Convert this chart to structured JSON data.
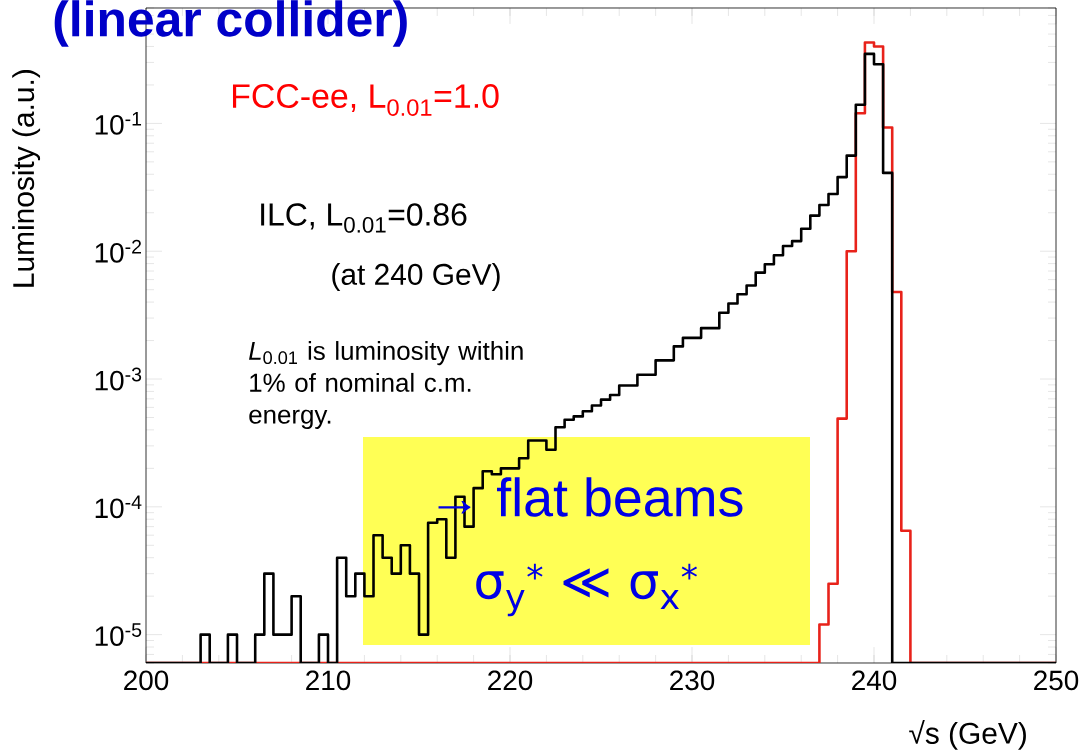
{
  "chart_data": {
    "type": "histogram",
    "title": "(linear collider)",
    "xlabel": "√s (GeV)",
    "ylabel": "Luminosity (a.u.)",
    "bins": [
      200,
      200.5,
      201,
      201.5,
      202,
      202.5,
      203,
      203.5,
      204,
      204.5,
      205,
      205.5,
      206,
      206.5,
      207,
      207.5,
      208,
      208.5,
      209,
      209.5,
      210,
      210.5,
      211,
      211.5,
      212,
      212.5,
      213,
      213.5,
      214,
      214.5,
      215,
      215.5,
      216,
      216.5,
      217,
      217.5,
      218,
      218.5,
      219,
      219.5,
      220,
      220.5,
      221,
      221.5,
      222,
      222.5,
      223,
      223.5,
      224,
      224.5,
      225,
      225.5,
      226,
      226.5,
      227,
      227.5,
      228,
      228.5,
      229,
      229.5,
      230,
      230.5,
      231,
      231.5,
      232,
      232.5,
      233,
      233.5,
      234,
      234.5,
      235,
      235.5,
      236,
      236.5,
      237,
      237.5,
      238,
      238.5,
      239,
      239.5,
      240,
      240.5,
      241,
      241.5,
      242,
      242.5,
      243,
      243.5,
      244,
      244.5,
      245,
      245.5,
      246,
      246.5,
      247,
      247.5,
      248,
      248.5,
      249,
      249.5,
      250
    ],
    "series": [
      {
        "color": "#e8221a",
        "values": [
          null,
          null,
          null,
          null,
          null,
          null,
          null,
          null,
          null,
          null,
          null,
          null,
          null,
          null,
          null,
          null,
          null,
          null,
          null,
          null,
          null,
          null,
          null,
          null,
          null,
          null,
          null,
          null,
          null,
          null,
          null,
          null,
          null,
          null,
          null,
          null,
          null,
          null,
          null,
          null,
          null,
          null,
          null,
          null,
          null,
          null,
          null,
          null,
          null,
          null,
          null,
          null,
          null,
          null,
          null,
          null,
          null,
          null,
          null,
          null,
          null,
          null,
          null,
          null,
          null,
          null,
          null,
          null,
          null,
          null,
          null,
          null,
          null,
          null,
          1.2e-05,
          2.5e-05,
          0.00049,
          0.01,
          0.12,
          0.43,
          0.4,
          0.093,
          0.0048,
          6.5e-05,
          null,
          null,
          null,
          null,
          null,
          null,
          null,
          null,
          null,
          null,
          null,
          null,
          null,
          null,
          null,
          null
        ]
      },
      {
        "color": "#000000",
        "values": [
          null,
          null,
          null,
          null,
          null,
          null,
          1e-05,
          null,
          null,
          1e-05,
          null,
          null,
          1e-05,
          3e-05,
          1e-05,
          1e-05,
          2e-05,
          null,
          null,
          1e-05,
          null,
          4e-05,
          2e-05,
          3e-05,
          2e-05,
          6e-05,
          4e-05,
          3e-05,
          5e-05,
          3e-05,
          1e-05,
          7.5e-05,
          8e-05,
          4e-05,
          0.00012,
          7e-05,
          0.00014,
          0.00019,
          0.00018,
          0.0002,
          0.0002,
          0.00024,
          0.00033,
          0.00033,
          0.00028,
          0.00042,
          0.00048,
          0.00051,
          0.00056,
          0.00062,
          0.00069,
          0.00075,
          0.00089,
          0.00089,
          0.00108,
          0.00108,
          0.0014,
          0.0014,
          0.0018,
          0.0021,
          0.0021,
          0.0025,
          0.0025,
          0.0033,
          0.0039,
          0.0046,
          0.0054,
          0.0068,
          0.0079,
          0.0093,
          0.011,
          0.012,
          0.015,
          0.019,
          0.023,
          0.028,
          0.038,
          0.056,
          0.14,
          0.35,
          0.29,
          0.041,
          null,
          null,
          null,
          null,
          null,
          null,
          null,
          null,
          null,
          null,
          null,
          null,
          null,
          null,
          null,
          null,
          null,
          null
        ]
      }
    ],
    "xlim": [
      200,
      250
    ],
    "ylim": [
      6e-06,
      0.8
    ],
    "log": "y",
    "xticks": [
      200,
      210,
      220,
      230,
      240,
      250
    ],
    "yticks": [
      {
        "value": 1e-05,
        "label": "10$^{-5}$"
      },
      {
        "value": 0.0001,
        "label": "10$^{-4}$"
      },
      {
        "value": 0.001,
        "label": "10$^{-3}$"
      },
      {
        "value": 0.01,
        "label": "10$^{-2}$"
      },
      {
        "value": 0.1,
        "label": "10$^{-1}$"
      }
    ],
    "grid": false,
    "annotations": [
      "FCC-ee,  L$_{0.01}$=1.0",
      "ILC, L$_{0.01}$=0.86",
      "(at 240 GeV)",
      "*L*$_{0.01}$ is luminosity within 1% of nominal c.m. energy.",
      "→ flat beams",
      "σ$_{y}$$^{*}$ ≪ σ$_{x}$$^{*}$"
    ]
  }
}
